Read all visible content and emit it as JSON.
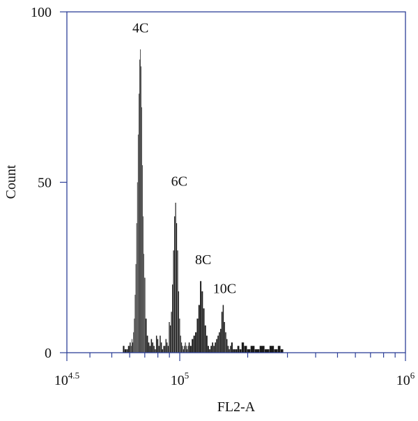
{
  "chart_data": {
    "type": "bar",
    "xlabel": "FL2-A",
    "ylabel": "Count",
    "x_scale": "log",
    "xlim": [
      31623,
      1000000
    ],
    "ylim": [
      0,
      100
    ],
    "grid": false,
    "x_ticks": [
      {
        "value": 31623,
        "base": "10",
        "exp": "4.5"
      },
      {
        "value": 100000,
        "base": "10",
        "exp": "5"
      },
      {
        "value": 1000000,
        "base": "10",
        "exp": "6"
      }
    ],
    "y_ticks": [
      {
        "value": 0,
        "label": "0"
      },
      {
        "value": 50,
        "label": "50"
      },
      {
        "value": 100,
        "label": "100"
      }
    ],
    "annotations": [
      {
        "text": "4C",
        "x": 67000,
        "y": 94
      },
      {
        "text": "6C",
        "x": 99500,
        "y": 49
      },
      {
        "text": "8C",
        "x": 127000,
        "y": 26
      },
      {
        "text": "10C",
        "x": 158000,
        "y": 17.5
      }
    ],
    "x": [
      56500,
      57500,
      58500,
      59500,
      60500,
      61000,
      61500,
      62000,
      62500,
      63000,
      63500,
      64000,
      64500,
      65000,
      65500,
      66000,
      66500,
      67000,
      67500,
      68000,
      68500,
      69000,
      69500,
      70000,
      71000,
      72000,
      73000,
      74000,
      75000,
      76000,
      77000,
      78000,
      79000,
      80000,
      81000,
      82000,
      83000,
      84000,
      85000,
      86000,
      87000,
      88000,
      89000,
      90000,
      91000,
      92000,
      93000,
      94000,
      95000,
      96000,
      97000,
      98000,
      99000,
      100000,
      101000,
      102000,
      103000,
      104000,
      105000,
      106000,
      107000,
      108000,
      109000,
      110000,
      112000,
      114000,
      116000,
      118000,
      120000,
      122000,
      124000,
      126000,
      128000,
      130000,
      132000,
      134000,
      136000,
      138000,
      140000,
      142000,
      144000,
      146000,
      148000,
      150000,
      152000,
      154000,
      156000,
      158000,
      160000,
      162000,
      164000,
      166000,
      168000,
      170000,
      174000,
      178000,
      182000,
      186000,
      190000,
      196000,
      202000,
      210000,
      220000,
      232000,
      244000,
      256000,
      268000,
      276000,
      284000
    ],
    "values": [
      2,
      1,
      1,
      2,
      3,
      2,
      4,
      3,
      6,
      10,
      17,
      26,
      38,
      50,
      64,
      76,
      86,
      89,
      84,
      72,
      55,
      40,
      29,
      22,
      10,
      5,
      3,
      2,
      4,
      3,
      2,
      1,
      5,
      4,
      2,
      5,
      3,
      1,
      2,
      2,
      4,
      3,
      2,
      9,
      8,
      12,
      20,
      30,
      40,
      44,
      38,
      30,
      18,
      10,
      5,
      3,
      2,
      1,
      2,
      3,
      2,
      1,
      2,
      3,
      2,
      4,
      5,
      6,
      10,
      14,
      21,
      18,
      13,
      8,
      5,
      2,
      1,
      2,
      3,
      2,
      3,
      4,
      5,
      6,
      7,
      12,
      14,
      9,
      6,
      4,
      2,
      1,
      2,
      3,
      1,
      1,
      2,
      1,
      3,
      2,
      1,
      2,
      1,
      2,
      1,
      2,
      1,
      2,
      1
    ]
  }
}
